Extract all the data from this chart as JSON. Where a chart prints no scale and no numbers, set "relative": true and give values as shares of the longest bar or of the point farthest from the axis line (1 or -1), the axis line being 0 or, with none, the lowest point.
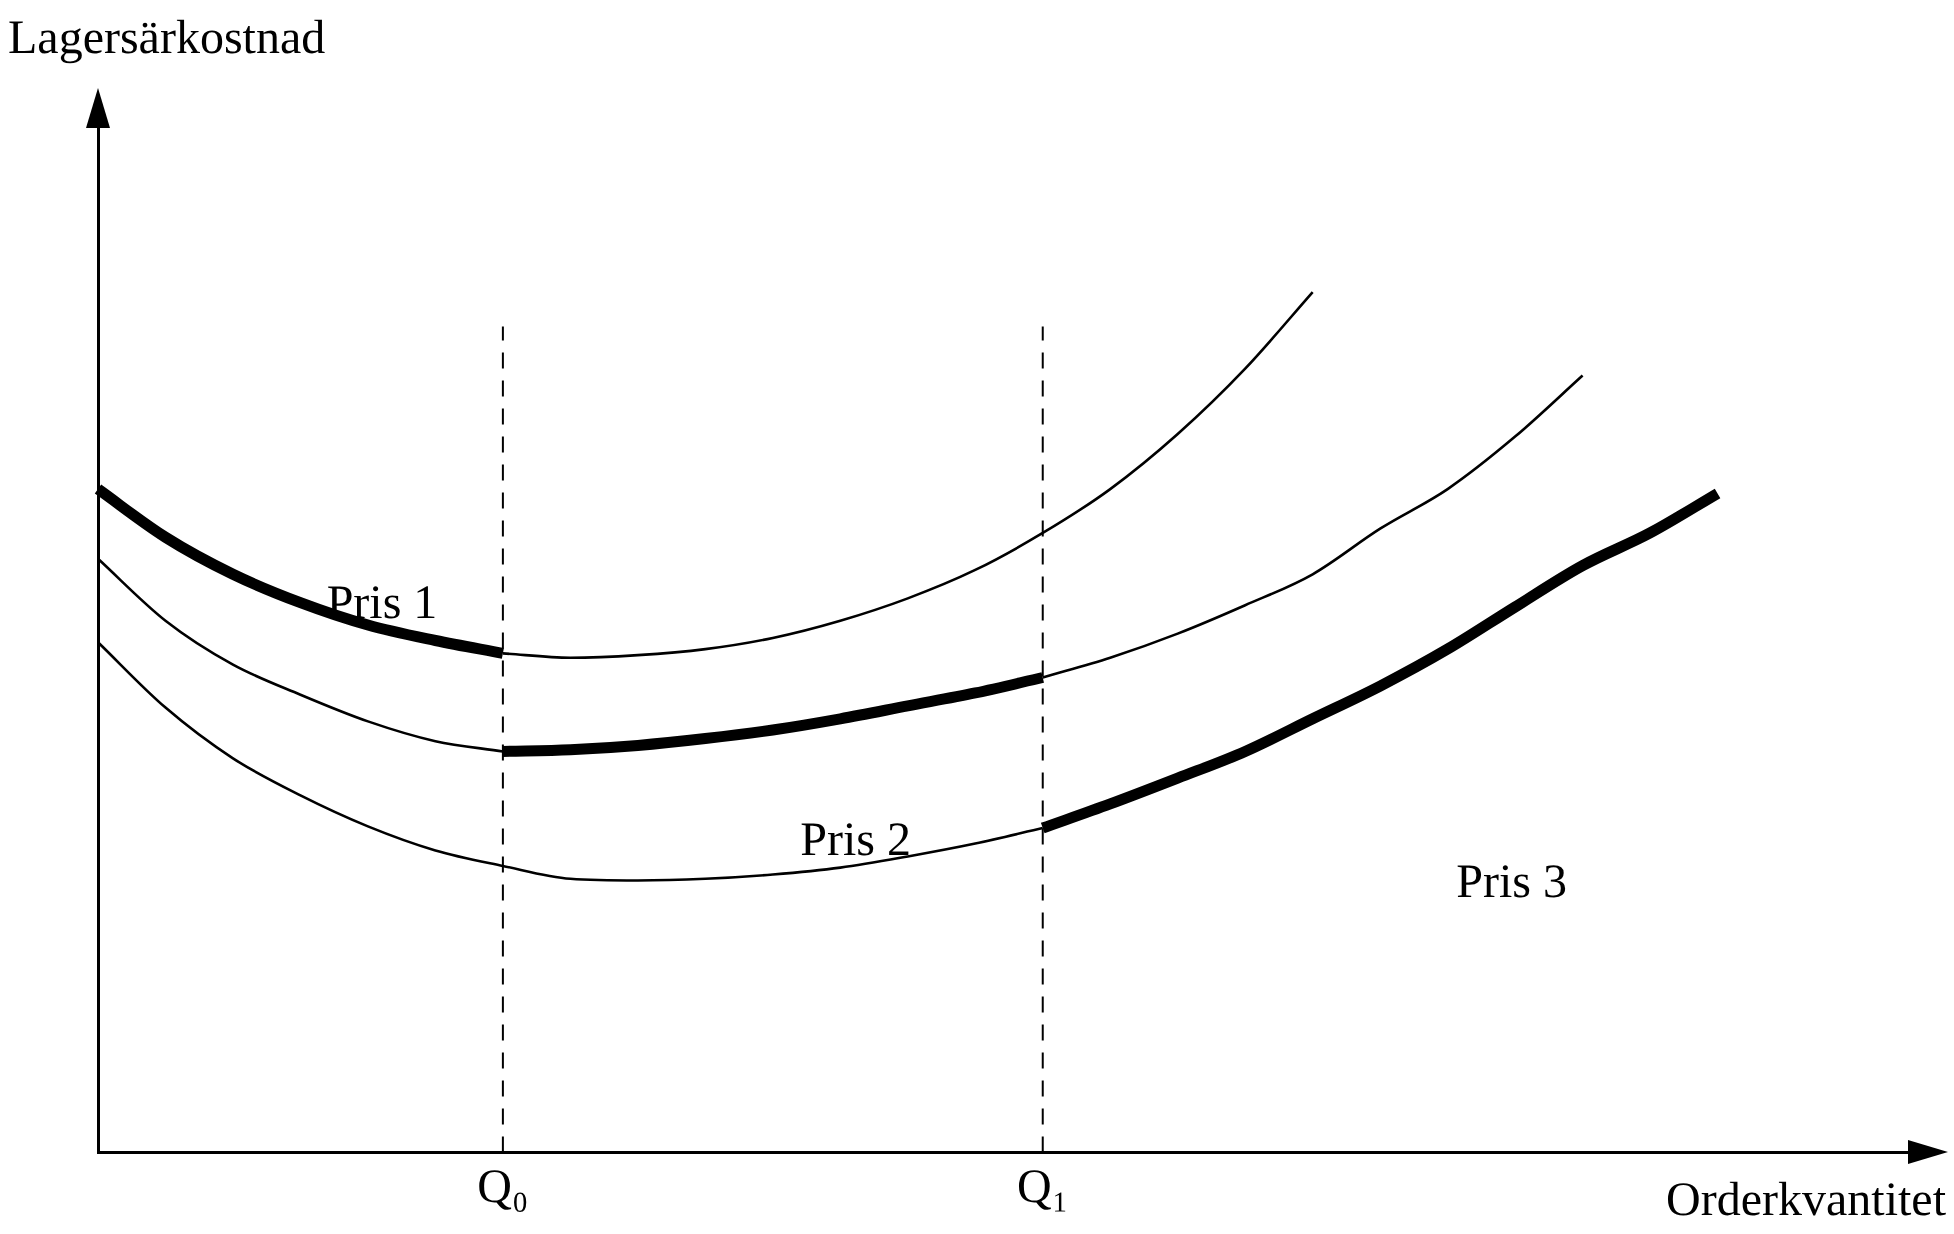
{
  "chart_data": {
    "type": "line",
    "relative": true,
    "xlabel": "Orderkvantitet",
    "ylabel": "Lagersärkostnad",
    "categories": [
      null,
      null,
      null,
      null,
      null,
      null,
      "Q₀",
      null,
      null,
      null,
      null,
      null,
      null,
      null,
      "Q₁",
      null,
      null,
      null,
      null,
      null,
      null,
      null,
      null,
      null,
      null,
      null,
      null,
      null
    ],
    "series": [
      {
        "color": "#000000",
        "values": [
          null,
          null,
          null,
          null,
          null,
          null,
          0.58,
          0.575,
          0.578,
          0.585,
          0.598,
          0.618,
          0.644,
          0.677,
          0.72,
          0.771,
          0.835,
          0.911,
          1,
          null,
          null,
          null,
          null,
          null,
          null,
          null,
          null,
          null
        ]
      },
      {
        "color": "#000000",
        "values": [
          0.69,
          0.618,
          0.567,
          0.532,
          0.501,
          0.478,
          0.466,
          null,
          null,
          null,
          null,
          null,
          null,
          null,
          0.552,
          0.575,
          0.603,
          0.636,
          0.672,
          0.725,
          0.771,
          0.832,
          0.903,
          null,
          null,
          null,
          null,
          null
        ]
      },
      {
        "color": "#000000",
        "values": [
          0.593,
          0.517,
          0.458,
          0.415,
          0.379,
          0.351,
          0.333,
          0.318,
          0.316,
          0.318,
          0.323,
          0.331,
          0.344,
          0.359,
          0.377,
          null,
          null,
          null,
          null,
          null,
          null,
          null,
          null,
          null,
          null,
          null,
          null,
          null
        ]
      },
      {
        "color": "#000000",
        "values": [
          0.771,
          0.715,
          0.672,
          0.639,
          0.613,
          0.595,
          0.58,
          null,
          null,
          null,
          null,
          null,
          null,
          null,
          null,
          null,
          null,
          null,
          null,
          null,
          null,
          null,
          null,
          null,
          null,
          null,
          null,
          null
        ]
      },
      {
        "color": "#000000",
        "values": [
          null,
          null,
          null,
          null,
          null,
          null,
          0.466,
          0.468,
          0.473,
          0.481,
          0.491,
          0.504,
          0.519,
          0.534,
          0.552,
          null,
          null,
          null,
          null,
          null,
          null,
          null,
          null,
          null,
          null,
          null,
          null,
          null
        ]
      },
      {
        "color": "#000000",
        "values": [
          null,
          null,
          null,
          null,
          null,
          null,
          null,
          null,
          null,
          null,
          null,
          null,
          null,
          null,
          0.377,
          0.405,
          0.435,
          0.466,
          0.504,
          0.542,
          0.585,
          0.634,
          0.682,
          0.72,
          0.766,
          null,
          null,
          null
        ]
      }
    ],
    "ref_lines": [
      {
        "axis": "x",
        "value": "Q₀",
        "line_style": "dashed",
        "color": "#000000"
      },
      {
        "axis": "x",
        "value": "Q₁",
        "line_style": "dashed",
        "color": "#000000"
      }
    ],
    "annotations": [
      "Pris 1",
      "Pris 2",
      "Pris 3"
    ],
    "grid": false,
    "legend": false,
    "marker": "none",
    "line_style": "solid"
  }
}
